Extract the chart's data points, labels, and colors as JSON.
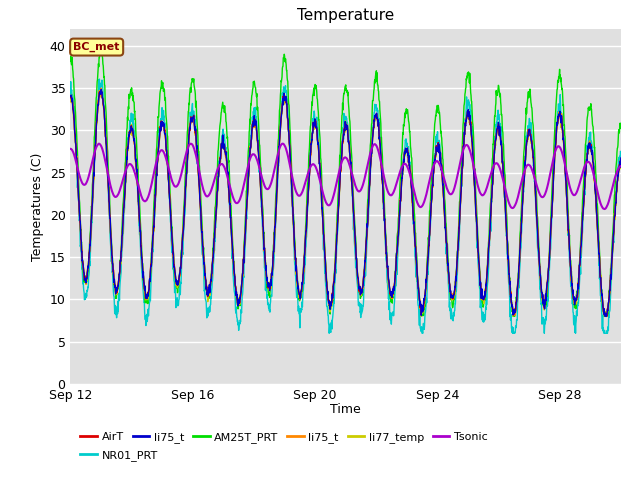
{
  "title": "Temperature",
  "xlabel": "Time",
  "ylabel": "Temperatures (C)",
  "ylim": [
    0,
    42
  ],
  "yticks": [
    0,
    5,
    10,
    15,
    20,
    25,
    30,
    35,
    40
  ],
  "x_tick_days": [
    12,
    16,
    20,
    24,
    28
  ],
  "x_tick_labels": [
    "Sep 12",
    "Sep 16",
    "Sep 20",
    "Sep 24",
    "Sep 28"
  ],
  "legend_labels": [
    "AirT",
    "li75_t",
    "AM25T_PRT",
    "li75_t",
    "li77_temp",
    "Tsonic",
    "NR01_PRT"
  ],
  "legend_colors": [
    "#dd0000",
    "#0000cc",
    "#00dd00",
    "#ff8800",
    "#cccc00",
    "#aa00cc",
    "#00cccc"
  ],
  "annotation_text": "BC_met",
  "plot_bg_color": "#e0e0e0",
  "title_fontsize": 11,
  "axis_label_fontsize": 9,
  "tick_fontsize": 9,
  "figsize": [
    6.4,
    4.8
  ],
  "dpi": 100
}
